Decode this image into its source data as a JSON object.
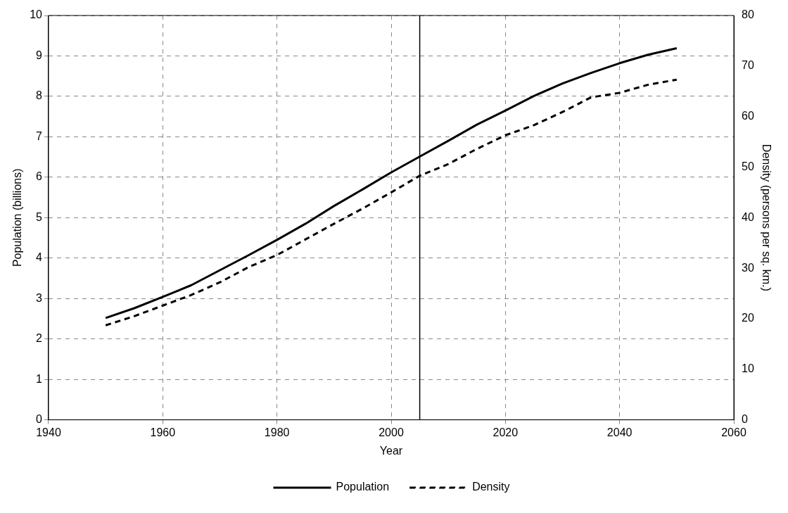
{
  "chart_data": {
    "type": "line",
    "xlabel": "Year",
    "ylabel": "Population (billions)",
    "y2label": "Density (persons per sq. km.)",
    "x": [
      1950,
      1955,
      1960,
      1965,
      1970,
      1975,
      1980,
      1985,
      1990,
      1995,
      2000,
      2005,
      2010,
      2015,
      2020,
      2025,
      2030,
      2035,
      2040,
      2045,
      2050
    ],
    "series": [
      {
        "name": "Population",
        "color": "#000000",
        "line_style": "solid",
        "values": [
          2.52,
          2.76,
          3.04,
          3.33,
          3.7,
          4.07,
          4.45,
          4.85,
          5.29,
          5.7,
          6.12,
          6.51,
          6.9,
          7.3,
          7.65,
          8.01,
          8.32,
          8.58,
          8.82,
          9.03,
          9.19
        ]
      },
      {
        "name": "Density",
        "color": "#000000",
        "line_style": "dashed",
        "axis": "y2",
        "values": [
          18.7,
          20.5,
          22.6,
          24.7,
          27.2,
          30.2,
          32.6,
          35.7,
          38.8,
          41.8,
          45.0,
          48.3,
          50.6,
          53.6,
          56.3,
          58.3,
          60.9,
          63.8,
          64.7,
          66.3,
          67.3
        ]
      }
    ],
    "xlim": [
      1940,
      2060
    ],
    "xticks": [
      1940,
      1960,
      1980,
      2000,
      2020,
      2040,
      2060
    ],
    "ylim": [
      0,
      10
    ],
    "yticks": [
      0,
      1,
      2,
      3,
      4,
      5,
      6,
      7,
      8,
      9,
      10
    ],
    "y2lim": [
      0,
      80
    ],
    "y2ticks": [
      0,
      10,
      20,
      30,
      40,
      50,
      60,
      70,
      80
    ],
    "ref_lines": [
      {
        "axis": "x",
        "value": 2005,
        "color": "#000000"
      }
    ],
    "grid": true,
    "legend": "bottom",
    "marker": "none"
  }
}
